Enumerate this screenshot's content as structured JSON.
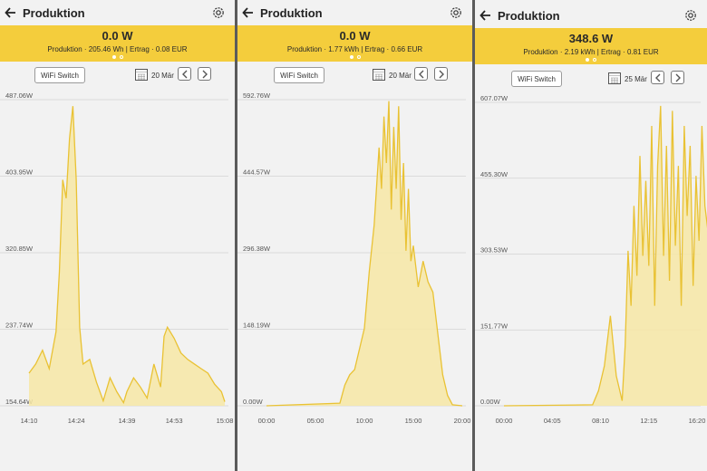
{
  "colors": {
    "accent": "#f4cd3c",
    "line": "#e9c234",
    "fill": "#f7e7a6",
    "grid": "#d3d3d3"
  },
  "icons": {
    "back": "arrow-left-icon",
    "settings": "gear-icon",
    "calendar": "calendar-icon",
    "prev": "chevron-left-icon",
    "next": "chevron-right-icon"
  },
  "panels": [
    {
      "title": "Produktion",
      "power": "0.0 W",
      "meta": "Produktion · 205.46 Wh  |  Ertrag · 0.08 EUR",
      "wifi_label": "WiFi Switch",
      "date": "20 Mär"
    },
    {
      "title": "Produktion",
      "power": "0.0 W",
      "meta": "Produktion · 1.77 kWh  |  Ertrag · 0.66 EUR",
      "wifi_label": "WiFi Switch",
      "date": "20 Mär"
    },
    {
      "title": "Produktion",
      "power": "348.6 W",
      "meta": "Produktion · 2.19 kWh  |  Ertrag · 0.81 EUR",
      "wifi_label": "WiFi Switch",
      "date": "25 Mär"
    }
  ],
  "chart_data": [
    {
      "type": "area",
      "yticks": [
        "154.64W",
        "237.74W",
        "320.85W",
        "403.95W",
        "487.06W"
      ],
      "ylim": [
        154.64,
        487.06
      ],
      "xticks": [
        "14:10",
        "14:24",
        "14:39",
        "14:53",
        "15:08"
      ],
      "x": [
        "14:10",
        "14:12",
        "14:14",
        "14:16",
        "14:18",
        "14:19",
        "14:20",
        "14:21",
        "14:22",
        "14:23",
        "14:24",
        "14:25",
        "14:26",
        "14:28",
        "14:30",
        "14:32",
        "14:34",
        "14:36",
        "14:38",
        "14:39",
        "14:41",
        "14:43",
        "14:45",
        "14:47",
        "14:49",
        "14:50",
        "14:51",
        "14:53",
        "14:55",
        "14:57",
        "14:59",
        "15:01",
        "15:03",
        "15:05",
        "15:07",
        "15:08"
      ],
      "values": [
        190,
        200,
        215,
        195,
        235,
        300,
        400,
        380,
        445,
        480,
        400,
        240,
        200,
        205,
        180,
        160,
        185,
        170,
        158,
        170,
        185,
        175,
        163,
        200,
        175,
        230,
        240,
        228,
        212,
        205,
        200,
        195,
        190,
        178,
        170,
        159
      ]
    },
    {
      "type": "area",
      "yticks": [
        "0.00W",
        "148.19W",
        "296.38W",
        "444.57W",
        "592.76W"
      ],
      "ylim": [
        0,
        592.76
      ],
      "xticks": [
        "00:00",
        "05:00",
        "10:00",
        "15:00",
        "20:00"
      ],
      "x": [
        "00:00",
        "07:30",
        "08:00",
        "08:30",
        "09:00",
        "09:30",
        "10:00",
        "10:30",
        "11:00",
        "11:30",
        "11:45",
        "12:00",
        "12:15",
        "12:30",
        "12:45",
        "13:00",
        "13:15",
        "13:30",
        "13:45",
        "14:00",
        "14:15",
        "14:30",
        "14:45",
        "15:00",
        "15:30",
        "16:00",
        "16:30",
        "17:00",
        "17:30",
        "18:00",
        "18:30",
        "19:00",
        "20:00"
      ],
      "values": [
        0,
        5,
        40,
        60,
        70,
        110,
        150,
        260,
        350,
        500,
        420,
        560,
        470,
        590,
        380,
        540,
        420,
        580,
        360,
        470,
        300,
        420,
        280,
        310,
        230,
        280,
        240,
        220,
        140,
        60,
        20,
        2,
        0
      ]
    },
    {
      "type": "area",
      "yticks": [
        "0.00W",
        "151.77W",
        "303.53W",
        "455.30W",
        "607.07W"
      ],
      "ylim": [
        0,
        607.07
      ],
      "xticks": [
        "00:00",
        "04:05",
        "08:10",
        "12:15",
        "16:20"
      ],
      "x": [
        "00:00",
        "07:30",
        "08:00",
        "08:30",
        "09:00",
        "09:30",
        "10:00",
        "10:15",
        "10:30",
        "10:45",
        "11:00",
        "11:15",
        "11:30",
        "11:45",
        "12:00",
        "12:15",
        "12:30",
        "12:45",
        "13:00",
        "13:15",
        "13:30",
        "13:45",
        "14:00",
        "14:15",
        "14:30",
        "14:45",
        "15:00",
        "15:15",
        "15:30",
        "15:45",
        "16:00",
        "16:15",
        "16:30",
        "16:45",
        "17:00",
        "17:15"
      ],
      "values": [
        0,
        2,
        30,
        80,
        180,
        60,
        10,
        120,
        310,
        200,
        400,
        260,
        500,
        300,
        450,
        280,
        560,
        200,
        480,
        600,
        300,
        520,
        250,
        590,
        320,
        480,
        200,
        560,
        380,
        520,
        240,
        460,
        330,
        560,
        400,
        350
      ]
    }
  ]
}
